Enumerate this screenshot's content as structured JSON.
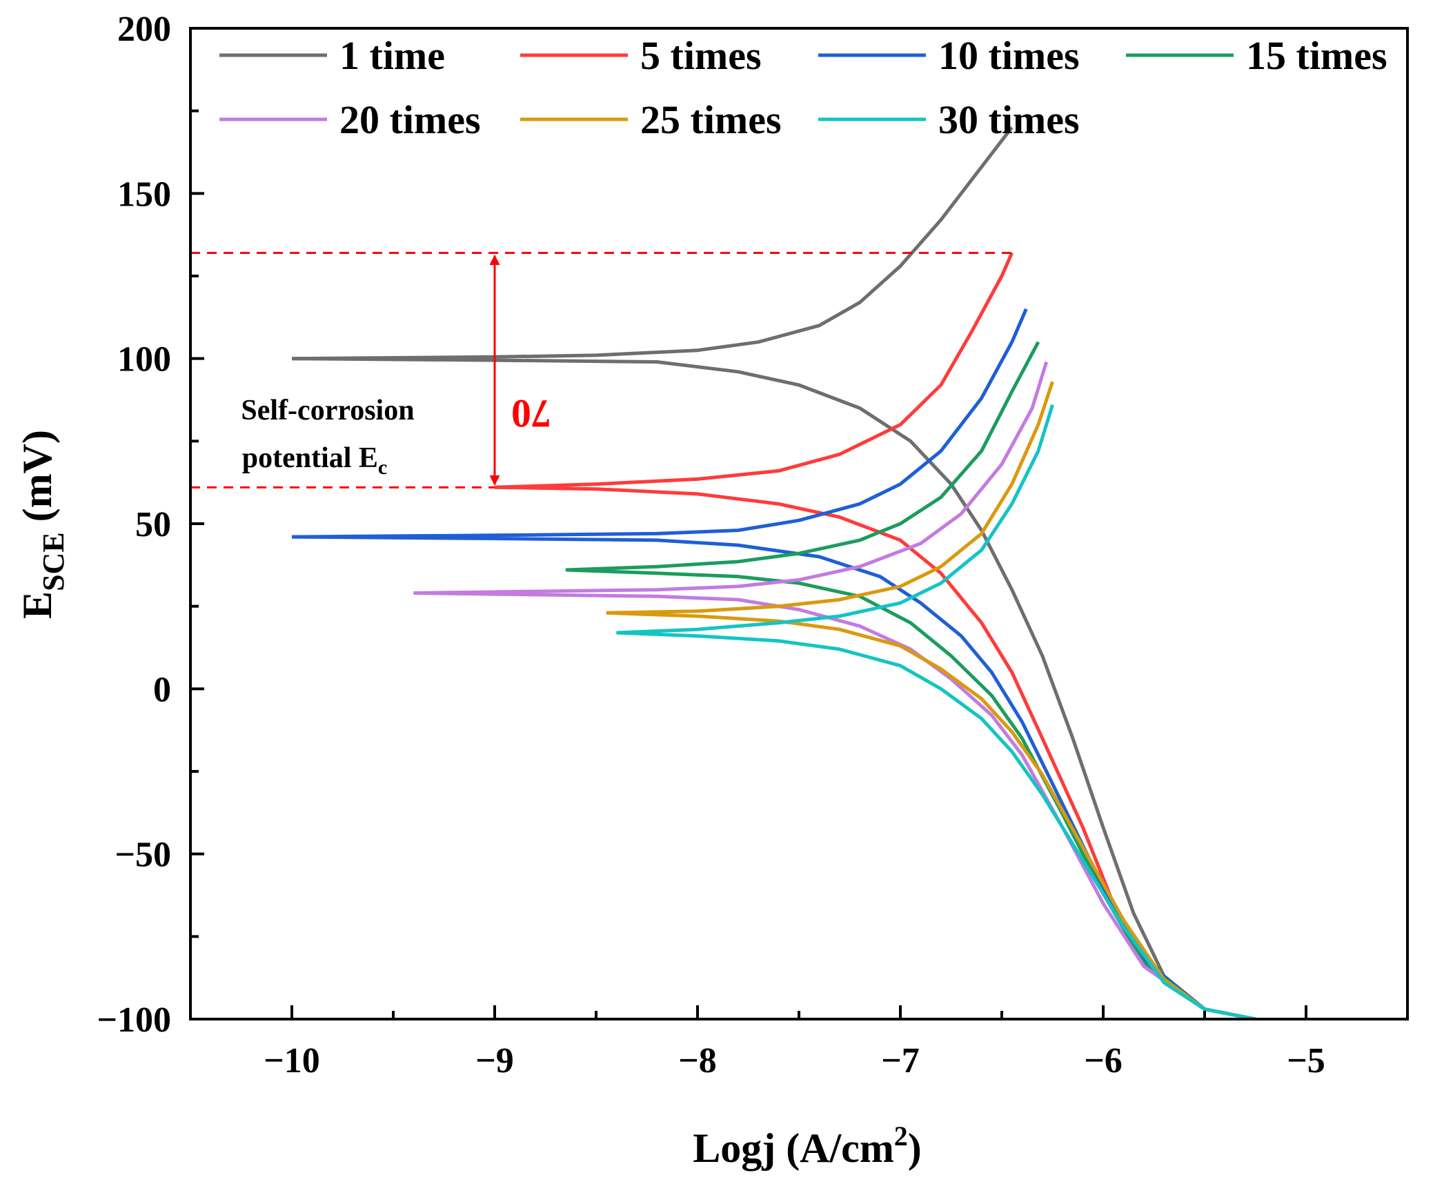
{
  "chart_data": {
    "type": "line",
    "title": "",
    "xlabel": "Logj (A/cm",
    "xlabel_sup": "2",
    "xlabel_tail": ")",
    "ylabel_main": "E",
    "ylabel_sub": "SCE",
    "ylabel_tail": " (mV)",
    "xlim": [
      -10.5,
      -4.5
    ],
    "ylim": [
      -100,
      200
    ],
    "xticks": [
      -10,
      -9,
      -8,
      -7,
      -6,
      -5
    ],
    "xtick_labels": [
      "−10",
      "−9",
      "−8",
      "−7",
      "−6",
      "−5"
    ],
    "yticks": [
      -100,
      -50,
      0,
      50,
      100,
      150,
      200
    ],
    "ytick_labels": [
      "−100",
      "−50",
      "0",
      "50",
      "100",
      "150",
      "200"
    ],
    "grid": false,
    "legend_position": "top",
    "series": [
      {
        "name": "1 time",
        "color": "#6e6e6e",
        "anodic": [
          [
            -10,
            100
          ],
          [
            -9,
            100.5
          ],
          [
            -8.5,
            101
          ],
          [
            -8,
            102.5
          ],
          [
            -7.7,
            105
          ],
          [
            -7.4,
            110
          ],
          [
            -7.2,
            117
          ],
          [
            -7.0,
            128
          ],
          [
            -6.8,
            142
          ],
          [
            -6.6,
            158
          ],
          [
            -6.45,
            170
          ]
        ],
        "cathodic": [
          [
            -10,
            100
          ],
          [
            -9,
            99.5
          ],
          [
            -8.2,
            99
          ],
          [
            -7.8,
            96
          ],
          [
            -7.5,
            92
          ],
          [
            -7.2,
            85
          ],
          [
            -6.95,
            75
          ],
          [
            -6.75,
            62
          ],
          [
            -6.6,
            48
          ],
          [
            -6.45,
            30
          ],
          [
            -6.3,
            10
          ],
          [
            -6.15,
            -15
          ],
          [
            -6.0,
            -42
          ],
          [
            -5.85,
            -68
          ],
          [
            -5.7,
            -87
          ],
          [
            -5.5,
            -97
          ],
          [
            -5.25,
            -100
          ]
        ]
      },
      {
        "name": "5 times",
        "color": "#ff3b3b",
        "anodic": [
          [
            -9,
            61
          ],
          [
            -8.5,
            62
          ],
          [
            -8,
            63.5
          ],
          [
            -7.6,
            66
          ],
          [
            -7.3,
            71
          ],
          [
            -7.0,
            80
          ],
          [
            -6.8,
            92
          ],
          [
            -6.65,
            108
          ],
          [
            -6.5,
            125
          ],
          [
            -6.45,
            132
          ]
        ],
        "cathodic": [
          [
            -9,
            61
          ],
          [
            -8.5,
            60.5
          ],
          [
            -8,
            59
          ],
          [
            -7.6,
            56
          ],
          [
            -7.3,
            52
          ],
          [
            -7.0,
            45
          ],
          [
            -6.8,
            35
          ],
          [
            -6.6,
            20
          ],
          [
            -6.45,
            5
          ],
          [
            -6.3,
            -15
          ],
          [
            -6.1,
            -42
          ],
          [
            -5.95,
            -65
          ],
          [
            -5.75,
            -85
          ],
          [
            -5.5,
            -97
          ],
          [
            -5.25,
            -100
          ]
        ]
      },
      {
        "name": "10 times",
        "color": "#1f5fd6",
        "anodic": [
          [
            -10,
            46
          ],
          [
            -9,
            46.5
          ],
          [
            -8.2,
            47
          ],
          [
            -7.8,
            48
          ],
          [
            -7.5,
            51
          ],
          [
            -7.2,
            56
          ],
          [
            -7.0,
            62
          ],
          [
            -6.8,
            72
          ],
          [
            -6.6,
            88
          ],
          [
            -6.45,
            105
          ],
          [
            -6.38,
            115
          ]
        ],
        "cathodic": [
          [
            -10,
            46
          ],
          [
            -9,
            45.5
          ],
          [
            -8.2,
            45
          ],
          [
            -7.8,
            43.5
          ],
          [
            -7.4,
            40
          ],
          [
            -7.1,
            34
          ],
          [
            -6.9,
            26
          ],
          [
            -6.7,
            16
          ],
          [
            -6.55,
            5
          ],
          [
            -6.4,
            -10
          ],
          [
            -6.2,
            -35
          ],
          [
            -6.0,
            -60
          ],
          [
            -5.8,
            -82
          ],
          [
            -5.5,
            -97
          ],
          [
            -5.25,
            -100
          ]
        ]
      },
      {
        "name": "15 times",
        "color": "#1c9c5e",
        "anodic": [
          [
            -8.65,
            36
          ],
          [
            -8.2,
            37
          ],
          [
            -7.8,
            38.5
          ],
          [
            -7.5,
            41
          ],
          [
            -7.2,
            45
          ],
          [
            -7.0,
            50
          ],
          [
            -6.8,
            58
          ],
          [
            -6.6,
            72
          ],
          [
            -6.45,
            90
          ],
          [
            -6.32,
            105
          ]
        ],
        "cathodic": [
          [
            -8.65,
            36
          ],
          [
            -8.2,
            35
          ],
          [
            -7.8,
            34
          ],
          [
            -7.5,
            32
          ],
          [
            -7.2,
            28
          ],
          [
            -6.95,
            20
          ],
          [
            -6.75,
            10
          ],
          [
            -6.55,
            -2
          ],
          [
            -6.4,
            -15
          ],
          [
            -6.2,
            -38
          ],
          [
            -6.0,
            -62
          ],
          [
            -5.8,
            -83
          ],
          [
            -5.5,
            -97
          ],
          [
            -5.25,
            -100
          ]
        ]
      },
      {
        "name": "20 times",
        "color": "#c37be0",
        "anodic": [
          [
            -9.4,
            29
          ],
          [
            -8.8,
            29.5
          ],
          [
            -8.2,
            30
          ],
          [
            -7.8,
            31
          ],
          [
            -7.5,
            33
          ],
          [
            -7.2,
            37
          ],
          [
            -6.9,
            44
          ],
          [
            -6.7,
            53
          ],
          [
            -6.5,
            68
          ],
          [
            -6.35,
            85
          ],
          [
            -6.28,
            99
          ]
        ],
        "cathodic": [
          [
            -9.4,
            29
          ],
          [
            -8.8,
            28.5
          ],
          [
            -8.2,
            28
          ],
          [
            -7.8,
            27
          ],
          [
            -7.5,
            24
          ],
          [
            -7.2,
            19
          ],
          [
            -6.95,
            12
          ],
          [
            -6.75,
            3
          ],
          [
            -6.55,
            -8
          ],
          [
            -6.4,
            -20
          ],
          [
            -6.2,
            -42
          ],
          [
            -6.0,
            -65
          ],
          [
            -5.8,
            -84
          ],
          [
            -5.5,
            -97
          ],
          [
            -5.25,
            -100
          ]
        ]
      },
      {
        "name": "25 times",
        "color": "#d89a0e",
        "anodic": [
          [
            -8.45,
            23
          ],
          [
            -8.0,
            23.5
          ],
          [
            -7.6,
            25
          ],
          [
            -7.3,
            27
          ],
          [
            -7.0,
            31
          ],
          [
            -6.8,
            37
          ],
          [
            -6.6,
            47
          ],
          [
            -6.45,
            62
          ],
          [
            -6.32,
            80
          ],
          [
            -6.25,
            93
          ]
        ],
        "cathodic": [
          [
            -8.45,
            23
          ],
          [
            -8.0,
            22
          ],
          [
            -7.6,
            20.5
          ],
          [
            -7.3,
            18
          ],
          [
            -7.0,
            13
          ],
          [
            -6.8,
            6
          ],
          [
            -6.6,
            -3
          ],
          [
            -6.45,
            -13
          ],
          [
            -6.3,
            -26
          ],
          [
            -6.1,
            -48
          ],
          [
            -5.9,
            -70
          ],
          [
            -5.7,
            -88
          ],
          [
            -5.5,
            -97
          ],
          [
            -5.25,
            -100
          ]
        ]
      },
      {
        "name": "30 times",
        "color": "#14c4c4",
        "anodic": [
          [
            -8.4,
            17
          ],
          [
            -8.0,
            18
          ],
          [
            -7.6,
            20
          ],
          [
            -7.3,
            22
          ],
          [
            -7.0,
            26
          ],
          [
            -6.8,
            32
          ],
          [
            -6.6,
            42
          ],
          [
            -6.45,
            56
          ],
          [
            -6.32,
            72
          ],
          [
            -6.25,
            86
          ]
        ],
        "cathodic": [
          [
            -8.4,
            17
          ],
          [
            -8.0,
            16
          ],
          [
            -7.6,
            14.5
          ],
          [
            -7.3,
            12
          ],
          [
            -7.0,
            7
          ],
          [
            -6.8,
            0
          ],
          [
            -6.6,
            -9
          ],
          [
            -6.45,
            -19
          ],
          [
            -6.3,
            -32
          ],
          [
            -6.1,
            -52
          ],
          [
            -5.9,
            -72
          ],
          [
            -5.7,
            -89
          ],
          [
            -5.5,
            -97
          ],
          [
            -5.25,
            -100
          ]
        ]
      }
    ],
    "annotations": {
      "ec_line1": "Self-corrosion",
      "ec_line2": "potential E",
      "ec_sub": "c",
      "difference_value": "70",
      "upper_level": 132,
      "lower_level": 61,
      "arrow_x": -9,
      "guide_end_x": -6.45,
      "color": "#ff0000"
    }
  }
}
